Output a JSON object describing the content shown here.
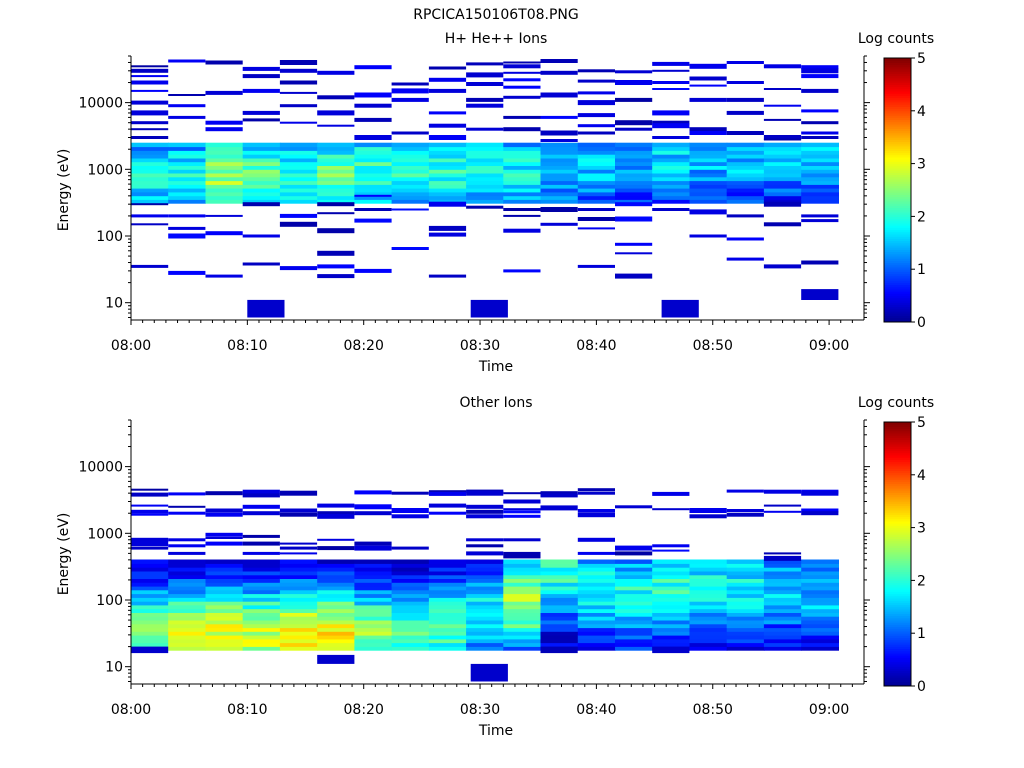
{
  "figure": {
    "title": "RPCICA150106T08.PNG"
  },
  "colorbar": {
    "label": "Log counts",
    "ticks": [
      "0",
      "1",
      "2",
      "3",
      "4",
      "5"
    ],
    "range": [
      0,
      5
    ],
    "colormap": [
      "#00008f",
      "#0000ff",
      "#00ffff",
      "#ffff00",
      "#ff0000",
      "#800000"
    ]
  },
  "chart_data": [
    {
      "type": "heatmap",
      "title": "H+ He++ Ions",
      "xlabel": "Time",
      "ylabel": "Energy (eV)",
      "x_ticks": [
        "08:00",
        "08:10",
        "08:20",
        "08:30",
        "08:40",
        "08:50",
        "09:00"
      ],
      "y_ticks": [
        "10",
        "100",
        "1000",
        "10000"
      ],
      "y_scale": "log",
      "y_range_eV": [
        5.5,
        50000
      ],
      "time_range": [
        "08:00",
        "09:03"
      ],
      "column_width_min": 3.2,
      "colorbar_label": "Log counts",
      "profiles": [
        {
          "start_min": 0.0,
          "end_min": 3.2,
          "e_lo_eV": 300,
          "e_hi_eV": 2600,
          "peak_eV": 800,
          "peak": 1.8
        },
        {
          "start_min": 3.2,
          "end_min": 6.4,
          "e_lo_eV": 300,
          "e_hi_eV": 2600,
          "peak_eV": 750,
          "peak": 1.9
        },
        {
          "start_min": 6.4,
          "end_min": 9.6,
          "e_lo_eV": 300,
          "e_hi_eV": 2600,
          "peak_eV": 800,
          "peak": 2.6
        },
        {
          "start_min": 9.6,
          "end_min": 12.8,
          "e_lo_eV": 300,
          "e_hi_eV": 2600,
          "peak_eV": 800,
          "peak": 2.2
        },
        {
          "start_min": 12.8,
          "end_min": 16.0,
          "e_lo_eV": 300,
          "e_hi_eV": 2600,
          "peak_eV": 750,
          "peak": 2.0
        },
        {
          "start_min": 16.0,
          "end_min": 19.2,
          "e_lo_eV": 300,
          "e_hi_eV": 2600,
          "peak_eV": 800,
          "peak": 2.3
        },
        {
          "start_min": 19.2,
          "end_min": 22.4,
          "e_lo_eV": 300,
          "e_hi_eV": 2600,
          "peak_eV": 900,
          "peak": 2.1
        },
        {
          "start_min": 22.4,
          "end_min": 25.6,
          "e_lo_eV": 300,
          "e_hi_eV": 2600,
          "peak_eV": 900,
          "peak": 2.0
        },
        {
          "start_min": 25.6,
          "end_min": 28.8,
          "e_lo_eV": 300,
          "e_hi_eV": 2600,
          "peak_eV": 900,
          "peak": 2.0
        },
        {
          "start_min": 28.8,
          "end_min": 32.0,
          "e_lo_eV": 300,
          "e_hi_eV": 2600,
          "peak_eV": 1000,
          "peak": 1.9
        },
        {
          "start_min": 32.0,
          "end_min": 35.2,
          "e_lo_eV": 300,
          "e_hi_eV": 2600,
          "peak_eV": 1000,
          "peak": 1.8
        },
        {
          "start_min": 35.2,
          "end_min": 38.4,
          "e_lo_eV": 300,
          "e_hi_eV": 2600,
          "peak_eV": 1200,
          "peak": 1.6
        },
        {
          "start_min": 38.4,
          "end_min": 41.6,
          "e_lo_eV": 300,
          "e_hi_eV": 2600,
          "peak_eV": 1200,
          "peak": 1.5
        },
        {
          "start_min": 41.6,
          "end_min": 44.8,
          "e_lo_eV": 300,
          "e_hi_eV": 2600,
          "peak_eV": 1300,
          "peak": 1.4
        },
        {
          "start_min": 44.8,
          "end_min": 48.0,
          "e_lo_eV": 300,
          "e_hi_eV": 2600,
          "peak_eV": 1500,
          "peak": 1.6
        },
        {
          "start_min": 48.0,
          "end_min": 51.2,
          "e_lo_eV": 300,
          "e_hi_eV": 2600,
          "peak_eV": 1500,
          "peak": 1.5
        },
        {
          "start_min": 51.2,
          "end_min": 54.4,
          "e_lo_eV": 300,
          "e_hi_eV": 2600,
          "peak_eV": 1500,
          "peak": 1.5
        },
        {
          "start_min": 54.4,
          "end_min": 57.6,
          "e_lo_eV": 300,
          "e_hi_eV": 2600,
          "peak_eV": 1800,
          "peak": 1.6
        },
        {
          "start_min": 57.6,
          "end_min": 60.8,
          "e_lo_eV": 300,
          "e_hi_eV": 2600,
          "peak_eV": 1800,
          "peak": 1.5
        }
      ],
      "sparse_lines": [
        {
          "start_min": 0.0,
          "end_min": 3.2,
          "energies_eV": [
            35000,
            30000,
            25000,
            20000,
            15000,
            10000,
            7000,
            5000,
            4000,
            3000,
            300,
            200,
            150,
            35
          ]
        },
        {
          "start_min": 3.2,
          "end_min": 6.4,
          "energies_eV": [
            42000,
            13000,
            9000,
            6000,
            200,
            130,
            100,
            28
          ]
        },
        {
          "start_min": 6.4,
          "end_min": 9.6,
          "energies_eV": [
            40000,
            14000,
            5000,
            4000,
            200,
            110,
            25
          ]
        },
        {
          "start_min": 9.6,
          "end_min": 12.8,
          "energies_eV": [
            32000,
            25000,
            15000,
            7000,
            5500,
            300,
            100,
            38
          ]
        },
        {
          "start_min": 12.8,
          "end_min": 16.0,
          "energies_eV": [
            40000,
            30000,
            20000,
            14000,
            9000,
            5000,
            200,
            150,
            33
          ]
        },
        {
          "start_min": 16.0,
          "end_min": 19.2,
          "energies_eV": [
            28000,
            12000,
            7000,
            4500,
            300,
            220,
            120,
            55,
            35,
            25
          ]
        },
        {
          "start_min": 19.2,
          "end_min": 22.4,
          "energies_eV": [
            34000,
            13000,
            9000,
            5500,
            3000,
            400,
            250,
            170,
            30
          ]
        },
        {
          "start_min": 22.4,
          "end_min": 25.6,
          "energies_eV": [
            19000,
            15000,
            11000,
            3500,
            250,
            65
          ]
        },
        {
          "start_min": 25.6,
          "end_min": 28.8,
          "energies_eV": [
            33000,
            22000,
            15000,
            7000,
            4500,
            3000,
            300,
            130,
            105,
            25
          ]
        },
        {
          "start_min": 28.8,
          "end_min": 32.0,
          "energies_eV": [
            38000,
            26000,
            19000,
            11000,
            9000,
            4000,
            270
          ]
        },
        {
          "start_min": 32.0,
          "end_min": 35.2,
          "energies_eV": [
            40000,
            35000,
            28000,
            22000,
            17000,
            12000,
            6000,
            4000,
            250,
            200,
            120,
            30
          ]
        },
        {
          "start_min": 35.2,
          "end_min": 38.4,
          "energies_eV": [
            42000,
            28000,
            13000,
            6000,
            3500,
            2700,
            250,
            150
          ]
        },
        {
          "start_min": 38.4,
          "end_min": 41.6,
          "energies_eV": [
            30000,
            21000,
            14000,
            10000,
            6500,
            4500,
            3500,
            250,
            180,
            130,
            35
          ]
        },
        {
          "start_min": 41.6,
          "end_min": 44.8,
          "energies_eV": [
            29000,
            20000,
            11000,
            5000,
            4000,
            300,
            180,
            75,
            55,
            25
          ]
        },
        {
          "start_min": 44.8,
          "end_min": 48.0,
          "energies_eV": [
            38000,
            30000,
            20000,
            16000,
            7000,
            5000,
            4500,
            3000,
            250
          ]
        },
        {
          "start_min": 48.0,
          "end_min": 51.2,
          "energies_eV": [
            35000,
            23000,
            18000,
            11000,
            4000,
            3500,
            230,
            100
          ]
        },
        {
          "start_min": 51.2,
          "end_min": 54.4,
          "energies_eV": [
            40000,
            20000,
            11000,
            7000,
            3500,
            200,
            90,
            45
          ]
        },
        {
          "start_min": 54.4,
          "end_min": 57.6,
          "energies_eV": [
            35000,
            16000,
            9000,
            5500,
            3000,
            2800,
            300,
            150,
            35
          ]
        },
        {
          "start_min": 57.6,
          "end_min": 60.8,
          "energies_eV": [
            34000,
            30000,
            25000,
            15000,
            7500,
            5000,
            3500,
            3000,
            200,
            170,
            40
          ]
        }
      ],
      "low_blocks": [
        {
          "start_min": 10.0,
          "end_min": 13.2,
          "e_lo_eV": 6,
          "e_hi_eV": 11,
          "value": 0.3
        },
        {
          "start_min": 29.2,
          "end_min": 32.4,
          "e_lo_eV": 6,
          "e_hi_eV": 11,
          "value": 0.3
        },
        {
          "start_min": 45.6,
          "end_min": 48.8,
          "e_lo_eV": 6,
          "e_hi_eV": 11,
          "value": 0.3
        },
        {
          "start_min": 57.6,
          "end_min": 60.8,
          "e_lo_eV": 11,
          "e_hi_eV": 16,
          "value": 0.3
        }
      ]
    },
    {
      "type": "heatmap",
      "title": "Other Ions",
      "xlabel": "Time",
      "ylabel": "Energy (eV)",
      "x_ticks": [
        "08:00",
        "08:10",
        "08:20",
        "08:30",
        "08:40",
        "08:50",
        "09:00"
      ],
      "y_ticks": [
        "10",
        "100",
        "1000",
        "10000"
      ],
      "y_scale": "log",
      "y_range_eV": [
        5.5,
        50000
      ],
      "time_range": [
        "08:00",
        "09:03"
      ],
      "column_width_min": 3.2,
      "colorbar_label": "Log counts",
      "profiles": [
        {
          "start_min": 0.0,
          "end_min": 3.2,
          "e_lo_eV": 18,
          "e_hi_eV": 380,
          "peak_eV": 30,
          "peak": 2.5
        },
        {
          "start_min": 3.2,
          "end_min": 6.4,
          "e_lo_eV": 18,
          "e_hi_eV": 380,
          "peak_eV": 30,
          "peak": 3.0
        },
        {
          "start_min": 6.4,
          "end_min": 9.6,
          "e_lo_eV": 18,
          "e_hi_eV": 380,
          "peak_eV": 30,
          "peak": 3.0
        },
        {
          "start_min": 9.6,
          "end_min": 12.8,
          "e_lo_eV": 18,
          "e_hi_eV": 380,
          "peak_eV": 30,
          "peak": 2.8
        },
        {
          "start_min": 12.8,
          "end_min": 16.0,
          "e_lo_eV": 18,
          "e_hi_eV": 380,
          "peak_eV": 30,
          "peak": 3.1
        },
        {
          "start_min": 16.0,
          "end_min": 19.2,
          "e_lo_eV": 18,
          "e_hi_eV": 380,
          "peak_eV": 30,
          "peak": 3.1
        },
        {
          "start_min": 19.2,
          "end_min": 22.4,
          "e_lo_eV": 18,
          "e_hi_eV": 380,
          "peak_eV": 30,
          "peak": 2.5
        },
        {
          "start_min": 22.4,
          "end_min": 25.6,
          "e_lo_eV": 18,
          "e_hi_eV": 380,
          "peak_eV": 30,
          "peak": 2.2
        },
        {
          "start_min": 25.6,
          "end_min": 28.8,
          "e_lo_eV": 18,
          "e_hi_eV": 380,
          "peak_eV": 35,
          "peak": 2.2
        },
        {
          "start_min": 28.8,
          "end_min": 32.0,
          "e_lo_eV": 18,
          "e_hi_eV": 380,
          "peak_eV": 60,
          "peak": 1.8
        },
        {
          "start_min": 32.0,
          "end_min": 35.2,
          "e_lo_eV": 18,
          "e_hi_eV": 380,
          "peak_eV": 90,
          "peak": 2.6
        },
        {
          "start_min": 35.2,
          "end_min": 38.4,
          "e_lo_eV": 18,
          "e_hi_eV": 380,
          "peak_eV": 250,
          "peak": 2.0
        },
        {
          "start_min": 38.4,
          "end_min": 41.6,
          "e_lo_eV": 18,
          "e_hi_eV": 380,
          "peak_eV": 150,
          "peak": 1.8
        },
        {
          "start_min": 41.6,
          "end_min": 44.8,
          "e_lo_eV": 18,
          "e_hi_eV": 380,
          "peak_eV": 120,
          "peak": 1.9
        },
        {
          "start_min": 44.8,
          "end_min": 48.0,
          "e_lo_eV": 18,
          "e_hi_eV": 380,
          "peak_eV": 150,
          "peak": 2.0
        },
        {
          "start_min": 48.0,
          "end_min": 51.2,
          "e_lo_eV": 18,
          "e_hi_eV": 380,
          "peak_eV": 150,
          "peak": 1.9
        },
        {
          "start_min": 51.2,
          "end_min": 54.4,
          "e_lo_eV": 18,
          "e_hi_eV": 380,
          "peak_eV": 150,
          "peak": 1.8
        },
        {
          "start_min": 54.4,
          "end_min": 57.6,
          "e_lo_eV": 18,
          "e_hi_eV": 380,
          "peak_eV": 150,
          "peak": 1.6
        },
        {
          "start_min": 57.6,
          "end_min": 60.8,
          "e_lo_eV": 18,
          "e_hi_eV": 380,
          "peak_eV": 120,
          "peak": 1.5
        }
      ],
      "sparse_lines": [
        {
          "start_min": 0.0,
          "end_min": 3.2,
          "energies_eV": [
            4500,
            3800,
            2600,
            2100,
            1900,
            800,
            700,
            600
          ]
        },
        {
          "start_min": 3.2,
          "end_min": 6.4,
          "energies_eV": [
            3900,
            2500,
            2000,
            800,
            650,
            500
          ]
        },
        {
          "start_min": 6.4,
          "end_min": 9.6,
          "energies_eV": [
            4000,
            2200,
            1900,
            950,
            850,
            700
          ]
        },
        {
          "start_min": 9.6,
          "end_min": 12.8,
          "energies_eV": [
            4200,
            3700,
            2500,
            2000,
            900,
            700,
            500
          ]
        },
        {
          "start_min": 12.8,
          "end_min": 16.0,
          "energies_eV": [
            4000,
            2200,
            1900,
            700,
            600,
            500
          ]
        },
        {
          "start_min": 16.0,
          "end_min": 19.2,
          "energies_eV": [
            2600,
            2000,
            1800,
            800,
            600
          ]
        },
        {
          "start_min": 19.2,
          "end_min": 22.4,
          "energies_eV": [
            4100,
            2500,
            2000,
            700,
            600
          ]
        },
        {
          "start_min": 22.4,
          "end_min": 25.6,
          "energies_eV": [
            4000,
            2200,
            1800,
            600
          ]
        },
        {
          "start_min": 25.6,
          "end_min": 28.8,
          "energies_eV": [
            4200,
            3900,
            2600,
            2000
          ]
        },
        {
          "start_min": 28.8,
          "end_min": 32.0,
          "energies_eV": [
            4300,
            4000,
            2500,
            2100,
            1800,
            800,
            650,
            500
          ]
        },
        {
          "start_min": 32.0,
          "end_min": 35.2,
          "energies_eV": [
            4000,
            3000,
            2300,
            2100,
            1800,
            800,
            500,
            450
          ]
        },
        {
          "start_min": 35.2,
          "end_min": 38.4,
          "energies_eV": [
            4000,
            3700,
            2400
          ]
        },
        {
          "start_min": 38.4,
          "end_min": 41.6,
          "energies_eV": [
            4500,
            4000,
            2200,
            1900,
            800,
            500
          ]
        },
        {
          "start_min": 41.6,
          "end_min": 44.8,
          "energies_eV": [
            2500,
            600,
            500
          ]
        },
        {
          "start_min": 44.8,
          "end_min": 48.0,
          "energies_eV": [
            3900,
            2300,
            650,
            550
          ]
        },
        {
          "start_min": 48.0,
          "end_min": 51.2,
          "energies_eV": [
            2200,
            1800
          ]
        },
        {
          "start_min": 51.2,
          "end_min": 54.4,
          "energies_eV": [
            4300,
            2200,
            1900
          ]
        },
        {
          "start_min": 54.4,
          "end_min": 57.6,
          "energies_eV": [
            4200,
            2600,
            2100,
            500,
            420
          ]
        },
        {
          "start_min": 57.6,
          "end_min": 60.8,
          "energies_eV": [
            4200,
            4000,
            2200,
            2000
          ]
        }
      ],
      "low_blocks": [
        {
          "start_min": 0.0,
          "end_min": 3.2,
          "e_lo_eV": 16,
          "e_hi_eV": 20,
          "value": 0.3
        },
        {
          "start_min": 16.0,
          "end_min": 19.2,
          "e_lo_eV": 11,
          "e_hi_eV": 15,
          "value": 0.3
        },
        {
          "start_min": 29.2,
          "end_min": 32.4,
          "e_lo_eV": 6,
          "e_hi_eV": 11,
          "value": 0.3
        },
        {
          "start_min": 35.2,
          "end_min": 38.4,
          "e_lo_eV": 16,
          "e_hi_eV": 20,
          "value": 0.2
        },
        {
          "start_min": 44.8,
          "end_min": 48.0,
          "e_lo_eV": 16,
          "e_hi_eV": 20,
          "value": 0.3
        }
      ]
    }
  ]
}
